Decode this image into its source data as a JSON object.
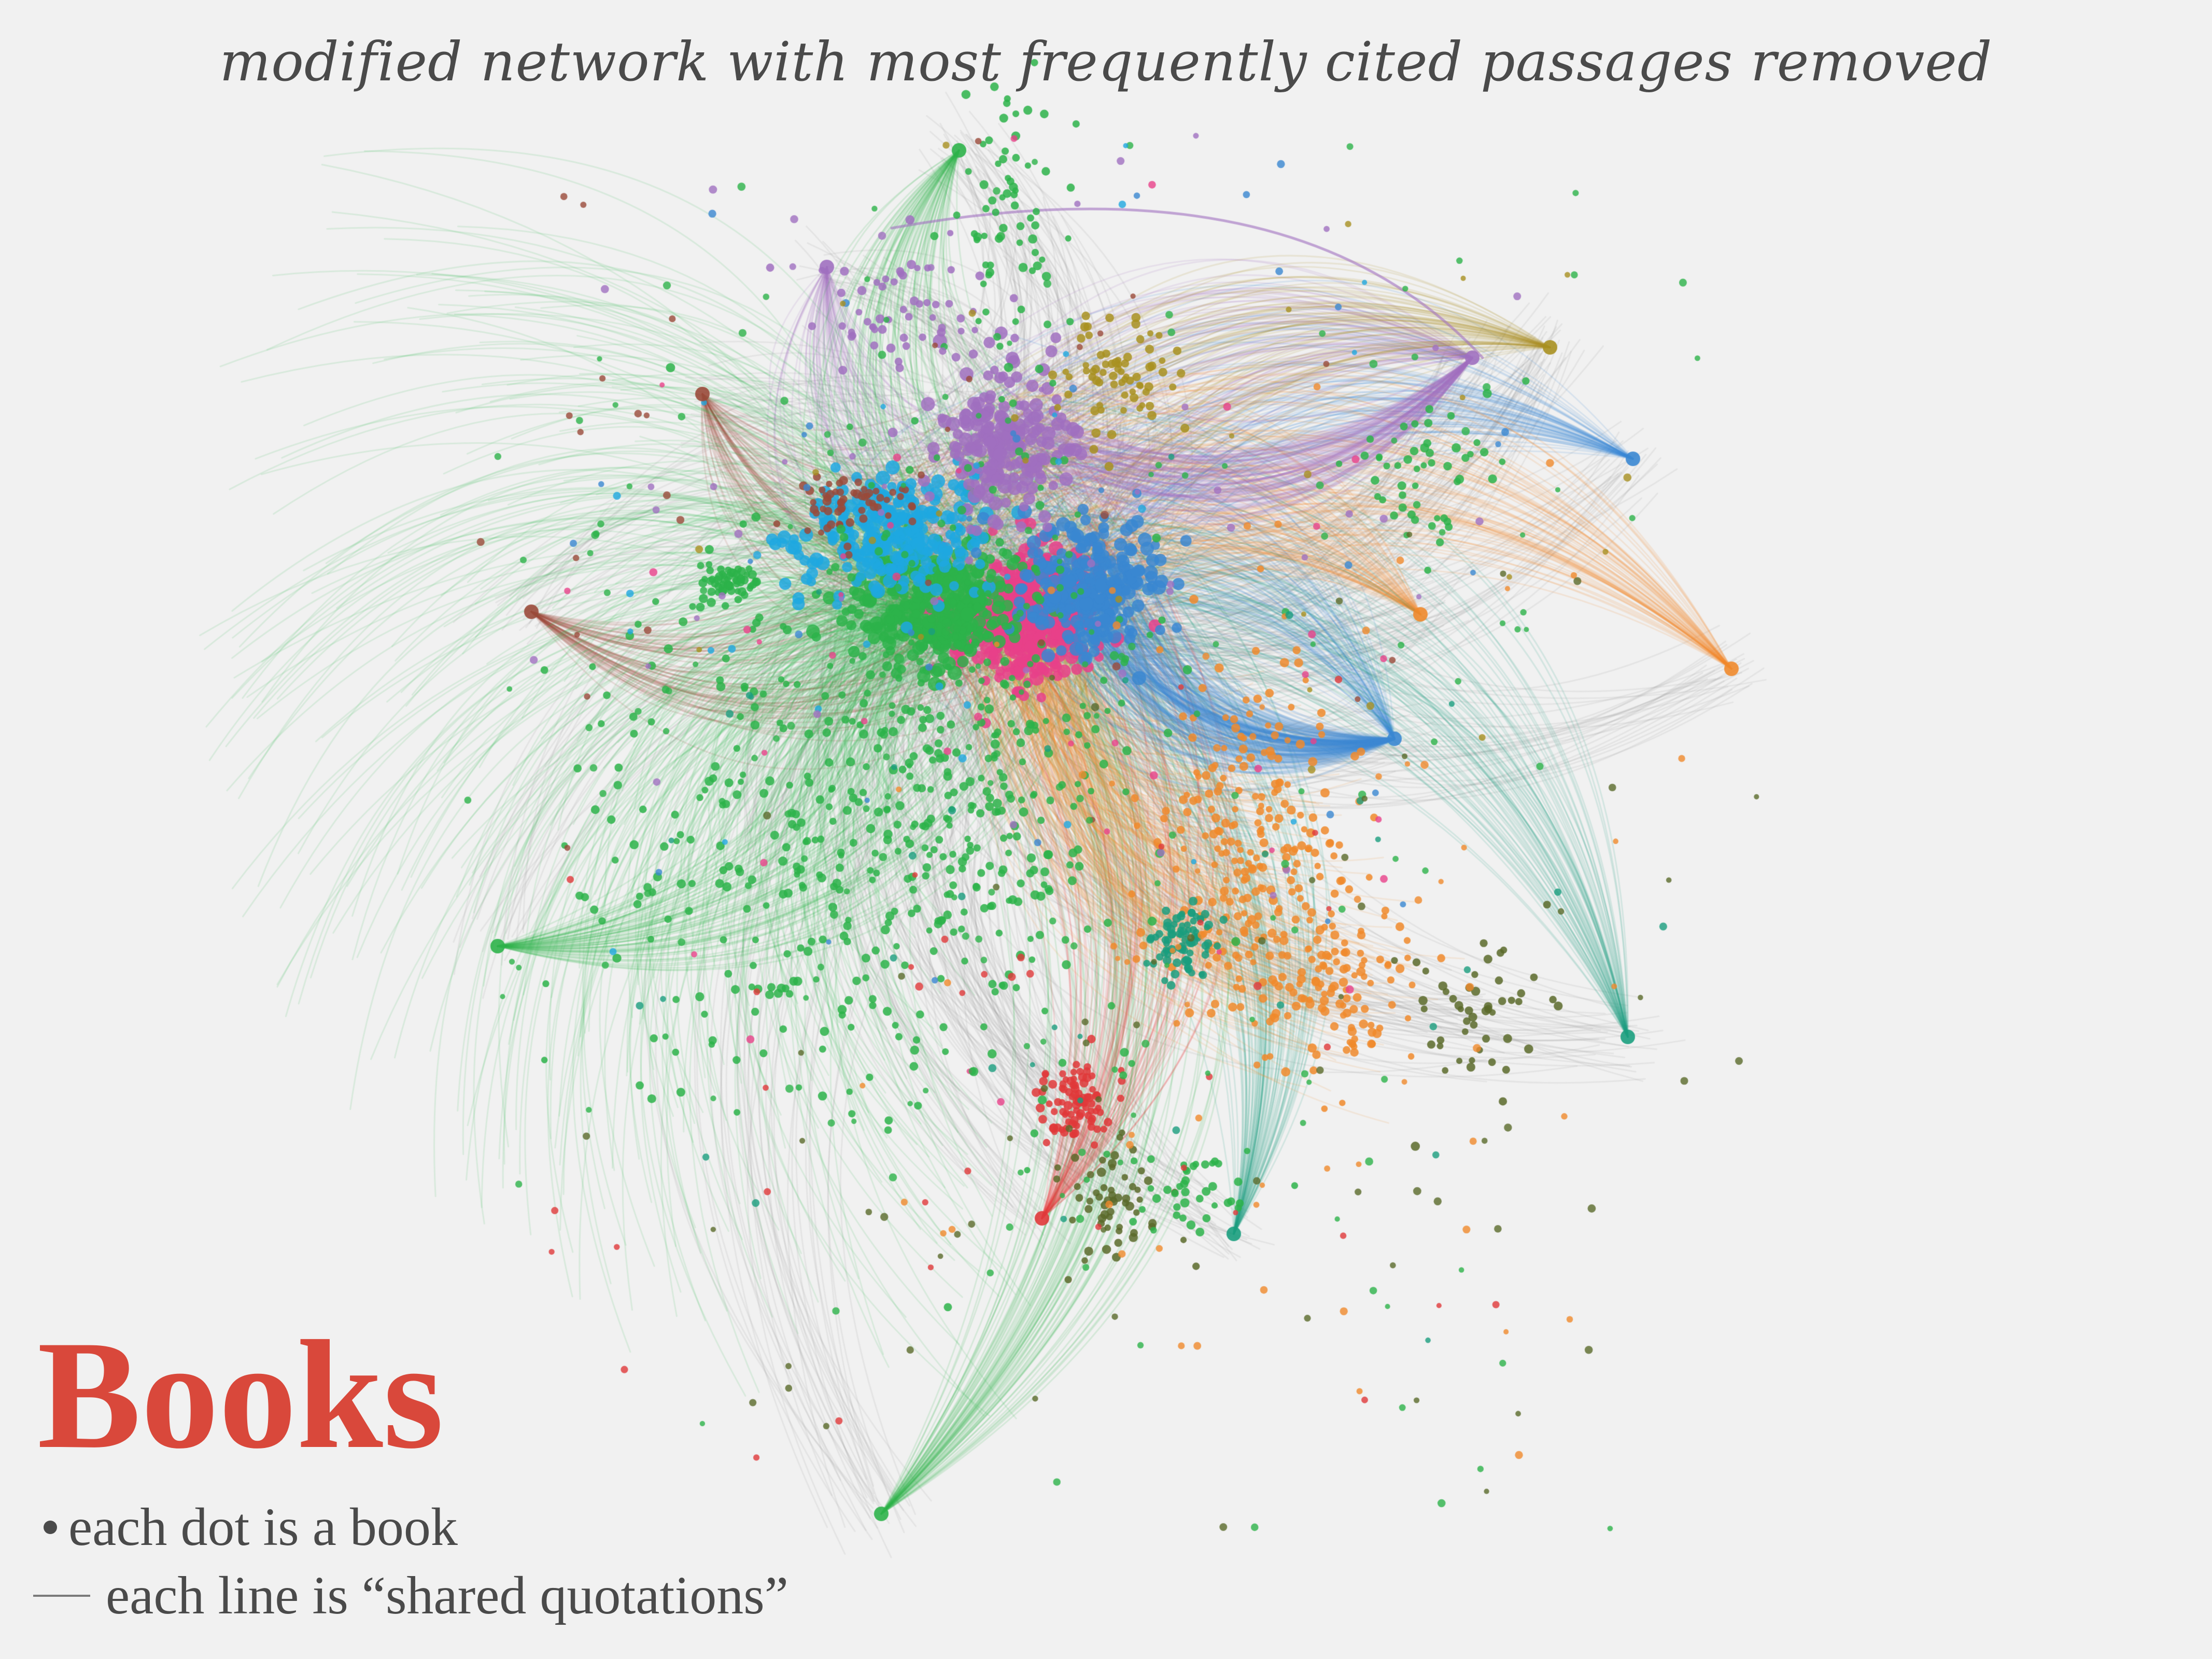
{
  "subtitle": "modified network with most frequently cited passages removed",
  "title": "Books",
  "legend": {
    "dot_text": "each dot is a book",
    "line_text": "each line is “shared quotations”",
    "dot_icon": "bullet-dot",
    "line_icon": "horizontal-rule"
  },
  "colors": {
    "background": "#f1f1f1",
    "title": "#d9483b",
    "text": "#4a4a4a",
    "clusters": {
      "green": "#2db34a",
      "pink": "#e8418a",
      "cyan": "#1fa8e0",
      "blue": "#3a87d1",
      "purple": "#a070c0",
      "orange": "#f08a2c",
      "teal": "#1a9e7e",
      "red": "#e0383a",
      "brown": "#9a4a3a",
      "olive": "#a89020",
      "darkolive": "#5a6a2a",
      "gray": "#8a8a8a"
    }
  }
}
